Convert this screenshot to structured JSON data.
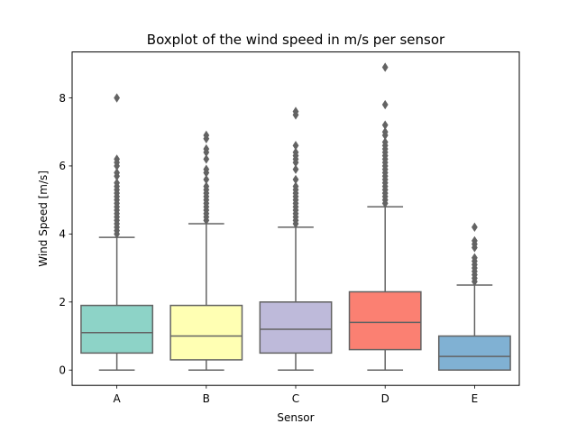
{
  "chart_data": {
    "type": "boxplot",
    "title": "Boxplot of the wind speed in m/s per sensor",
    "xlabel": "Sensor",
    "ylabel": "Wind Speed [m/s]",
    "ylim": [
      -0.45,
      9.35
    ],
    "yticks": [
      0,
      2,
      4,
      6,
      8
    ],
    "grid": false,
    "categories": [
      "A",
      "B",
      "C",
      "D",
      "E"
    ],
    "colors": [
      "#8dd3c7",
      "#ffffb3",
      "#bebada",
      "#fb8072",
      "#80b1d3"
    ],
    "line_color": "#636363",
    "boxes": [
      {
        "name": "A",
        "whisker_low": 0,
        "q1": 0.5,
        "median": 1.1,
        "q3": 1.9,
        "whisker_high": 3.9,
        "outliers": [
          4.0,
          4.1,
          4.2,
          4.3,
          4.4,
          4.5,
          4.6,
          4.7,
          4.8,
          4.9,
          5.0,
          5.1,
          5.2,
          5.3,
          5.4,
          5.5,
          5.7,
          5.8,
          6.0,
          6.1,
          6.2,
          8.0
        ]
      },
      {
        "name": "B",
        "whisker_low": 0,
        "q1": 0.3,
        "median": 1.0,
        "q3": 1.9,
        "whisker_high": 4.3,
        "outliers": [
          4.4,
          4.5,
          4.6,
          4.7,
          4.8,
          4.9,
          5.0,
          5.1,
          5.2,
          5.3,
          5.4,
          5.6,
          5.8,
          5.9,
          6.2,
          6.4,
          6.5,
          6.8,
          6.9
        ]
      },
      {
        "name": "C",
        "whisker_low": 0,
        "q1": 0.5,
        "median": 1.2,
        "q3": 2.0,
        "whisker_high": 4.2,
        "outliers": [
          4.3,
          4.4,
          4.5,
          4.6,
          4.7,
          4.8,
          4.9,
          5.0,
          5.1,
          5.2,
          5.3,
          5.4,
          5.6,
          5.9,
          6.1,
          6.2,
          6.3,
          6.4,
          6.6,
          7.5,
          7.6
        ]
      },
      {
        "name": "D",
        "whisker_low": 0,
        "q1": 0.6,
        "median": 1.4,
        "q3": 2.3,
        "whisker_high": 4.8,
        "outliers": [
          4.9,
          5.0,
          5.1,
          5.2,
          5.3,
          5.4,
          5.5,
          5.6,
          5.7,
          5.8,
          5.9,
          6.0,
          6.1,
          6.2,
          6.3,
          6.4,
          6.5,
          6.6,
          6.7,
          6.9,
          7.0,
          7.2,
          7.8,
          8.9
        ]
      },
      {
        "name": "E",
        "whisker_low": 0,
        "q1": 0.0,
        "median": 0.4,
        "q3": 1.0,
        "whisker_high": 2.5,
        "outliers": [
          2.6,
          2.7,
          2.8,
          2.9,
          3.0,
          3.1,
          3.2,
          3.3,
          3.6,
          3.7,
          3.8,
          4.2
        ]
      }
    ]
  }
}
